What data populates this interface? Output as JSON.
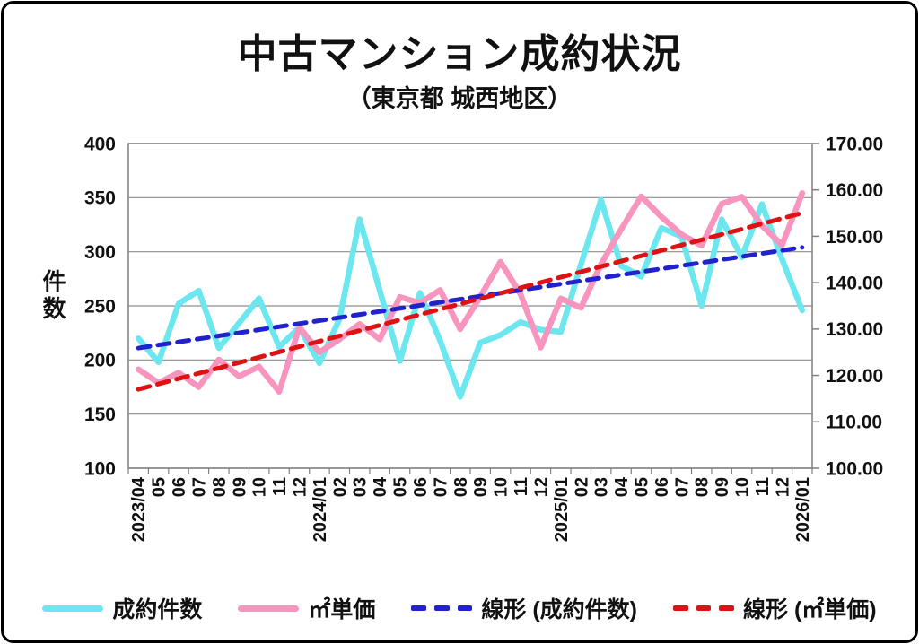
{
  "title": "中古マンション成約状況",
  "subtitle": "（東京都 城西地区）",
  "chart_data": {
    "type": "line",
    "x_labels": [
      "2023/04",
      "05",
      "06",
      "07",
      "08",
      "09",
      "10",
      "11",
      "12",
      "2024/01",
      "02",
      "03",
      "04",
      "05",
      "06",
      "07",
      "08",
      "09",
      "10",
      "11",
      "12",
      "2025/01",
      "02",
      "03",
      "04",
      "05",
      "06",
      "07",
      "08",
      "09",
      "10",
      "11",
      "12",
      "2026/01"
    ],
    "left_axis": {
      "label": "件数",
      "min": 100,
      "max": 400,
      "step": 50,
      "tick_values": [
        400,
        350,
        300,
        250,
        200,
        150,
        100
      ],
      "tick_labels": [
        "400",
        "350",
        "300",
        "250",
        "200",
        "150",
        "100"
      ]
    },
    "right_axis": {
      "min": 100,
      "max": 170,
      "step": 10,
      "tick_values": [
        170,
        160,
        150,
        140,
        130,
        120,
        110,
        100
      ],
      "tick_labels": [
        "170.00",
        "160.00",
        "150.00",
        "140.00",
        "130.00",
        "120.00",
        "110.00",
        "100.00"
      ]
    },
    "grid": true,
    "legend_position": "bottom",
    "colors": {
      "grid": "#8e8e8e",
      "axis": "#7f7f7f",
      "text": "#111111"
    },
    "series": [
      {
        "name": "成約件数",
        "axis": "left",
        "style": "solid",
        "color": "#6ce7ef",
        "width": 6.5,
        "values": [
          220,
          198,
          252,
          264,
          211,
          234,
          257,
          212,
          230,
          197,
          238,
          330,
          264,
          199,
          262,
          218,
          166,
          216,
          223,
          235,
          228,
          226,
          288,
          348,
          287,
          277,
          322,
          314,
          250,
          330,
          295,
          344,
          293,
          246
        ]
      },
      {
        "name": "㎡単価",
        "axis": "right",
        "style": "solid",
        "color": "#f795be",
        "width": 6.5,
        "values": [
          121.3,
          118.4,
          120.6,
          117.5,
          123.4,
          119.8,
          121.9,
          116.5,
          130.4,
          125.0,
          127.8,
          131.1,
          127.8,
          136.9,
          135.6,
          138.4,
          130.0,
          137.0,
          144.5,
          137.5,
          126.0,
          136.6,
          134.6,
          144.0,
          151.5,
          158.6,
          154.2,
          150.4,
          148.0,
          157.0,
          158.5,
          152.3,
          148.1,
          159.3
        ]
      },
      {
        "name": "線形 (成約件数)",
        "axis": "left",
        "style": "dashed",
        "color": "#2121cd",
        "width": 5,
        "trend_start": 211,
        "trend_end": 304
      },
      {
        "name": "線形 (㎡単価)",
        "axis": "right",
        "style": "dashed",
        "color": "#de1212",
        "width": 5,
        "trend_start": 117,
        "trend_end": 155
      }
    ]
  }
}
